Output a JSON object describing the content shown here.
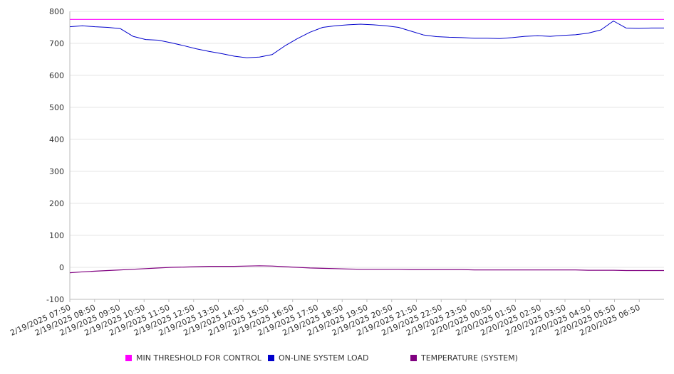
{
  "colors": {
    "threshold": "#ff00ff",
    "load": "#0000cc",
    "temperature": "#800080",
    "grid": "#e6e6e6",
    "axis": "#bbbbbb"
  },
  "legend": [
    {
      "label": "MIN THRESHOLD FOR CONTROL",
      "color": "#ff00ff"
    },
    {
      "label": "ON-LINE SYSTEM LOAD",
      "color": "#0000cc"
    },
    {
      "label": "TEMPERATURE (SYSTEM)",
      "color": "#800080"
    }
  ],
  "chart_data": {
    "type": "line",
    "ylim": [
      -100,
      800
    ],
    "yticks": [
      800,
      700,
      600,
      500,
      400,
      300,
      200,
      100,
      0,
      -100
    ],
    "grid": true,
    "legend_position": "bottom",
    "x_tick_labels": [
      "2/19/2025 07:50",
      "2/19/2025 08:50",
      "2/19/2025 09:50",
      "2/19/2025 10:50",
      "2/19/2025 11:50",
      "2/19/2025 12:50",
      "2/19/2025 13:50",
      "2/19/2025 14:50",
      "2/19/2025 15:50",
      "2/19/2025 16:50",
      "2/19/2025 17:50",
      "2/19/2025 18:50",
      "2/19/2025 19:50",
      "2/19/2025 20:50",
      "2/19/2025 21:50",
      "2/19/2025 22:50",
      "2/19/2025 23:50",
      "2/20/2025 00:50",
      "2/20/2025 01:50",
      "2/20/2025 02:50",
      "2/20/2025 03:50",
      "2/20/2025 04:50",
      "2/20/2025 05:50",
      "2/20/2025 06:50"
    ],
    "x": [
      "07:50",
      "08:20",
      "08:50",
      "09:20",
      "09:50",
      "10:20",
      "10:50",
      "11:20",
      "11:50",
      "12:20",
      "12:50",
      "13:20",
      "13:50",
      "14:20",
      "14:50",
      "15:20",
      "15:50",
      "16:20",
      "16:50",
      "17:20",
      "17:50",
      "18:20",
      "18:50",
      "19:20",
      "19:50",
      "20:20",
      "20:50",
      "21:20",
      "21:50",
      "22:20",
      "22:50",
      "23:20",
      "23:50",
      "00:20",
      "00:50",
      "01:20",
      "01:50",
      "02:20",
      "02:50",
      "03:20",
      "03:50",
      "04:20",
      "04:50",
      "05:20",
      "05:50",
      "06:20",
      "06:50",
      "07:15"
    ],
    "series": [
      {
        "name": "MIN THRESHOLD FOR CONTROL",
        "values": [
          775,
          775,
          775,
          775,
          775,
          775,
          775,
          775,
          775,
          775,
          775,
          775,
          775,
          775,
          775,
          775,
          775,
          775,
          775,
          775,
          775,
          775,
          775,
          775,
          775,
          775,
          775,
          775,
          775,
          775,
          775,
          775,
          775,
          775,
          775,
          775,
          775,
          775,
          775,
          775,
          775,
          775,
          775,
          775,
          775,
          775,
          775,
          775
        ]
      },
      {
        "name": "ON-LINE SYSTEM LOAD",
        "values": [
          752,
          755,
          752,
          750,
          746,
          722,
          712,
          710,
          702,
          693,
          683,
          675,
          668,
          660,
          655,
          657,
          665,
          692,
          715,
          735,
          750,
          755,
          758,
          760,
          758,
          755,
          750,
          738,
          726,
          721,
          719,
          718,
          716,
          716,
          715,
          718,
          722,
          724,
          722,
          725,
          727,
          732,
          742,
          770,
          748,
          747,
          748,
          748
        ]
      },
      {
        "name": "TEMPERATURE (SYSTEM)",
        "values": [
          -17,
          -14,
          -12,
          -10,
          -8,
          -6,
          -4,
          -2,
          0,
          1,
          2,
          3,
          3,
          3,
          4,
          5,
          4,
          2,
          0,
          -2,
          -3,
          -4,
          -5,
          -6,
          -6,
          -6,
          -6,
          -7,
          -7,
          -7,
          -7,
          -7,
          -8,
          -8,
          -8,
          -8,
          -8,
          -8,
          -8,
          -8,
          -8,
          -9,
          -9,
          -9,
          -10,
          -10,
          -10,
          -10
        ]
      }
    ]
  }
}
